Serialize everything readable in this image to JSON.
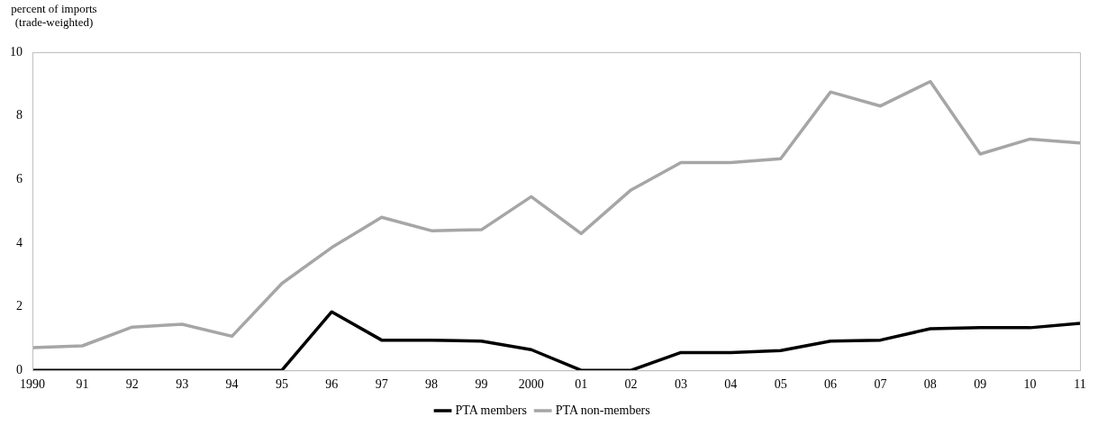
{
  "chart_data": {
    "type": "line",
    "ylabel": "percent of imports (trade-weighted)",
    "categories": [
      "1990",
      "91",
      "92",
      "93",
      "94",
      "95",
      "96",
      "97",
      "98",
      "99",
      "2000",
      "01",
      "02",
      "03",
      "04",
      "05",
      "06",
      "07",
      "08",
      "09",
      "10",
      "11"
    ],
    "series": [
      {
        "name": "PTA members",
        "color": "#000000",
        "values": [
          0,
          0,
          0,
          0,
          0,
          0,
          1.84,
          0.95,
          0.95,
          0.92,
          0.65,
          0,
          0,
          0.56,
          0.56,
          0.62,
          0.92,
          0.95,
          1.31,
          1.34,
          1.34,
          1.48
        ]
      },
      {
        "name": "PTA non-members",
        "color": "#a6a6a6",
        "values": [
          0.71,
          0.77,
          1.36,
          1.45,
          1.07,
          2.73,
          3.86,
          4.81,
          4.39,
          4.42,
          5.46,
          4.3,
          5.67,
          6.53,
          6.53,
          6.65,
          8.75,
          8.31,
          9.08,
          6.8,
          7.27,
          7.15
        ]
      }
    ],
    "ylim": [
      0,
      10
    ],
    "yticks": [
      0,
      2,
      4,
      6,
      8,
      10
    ],
    "grid": false,
    "legend": "bottom",
    "marker": "none",
    "line_style": "solid"
  }
}
